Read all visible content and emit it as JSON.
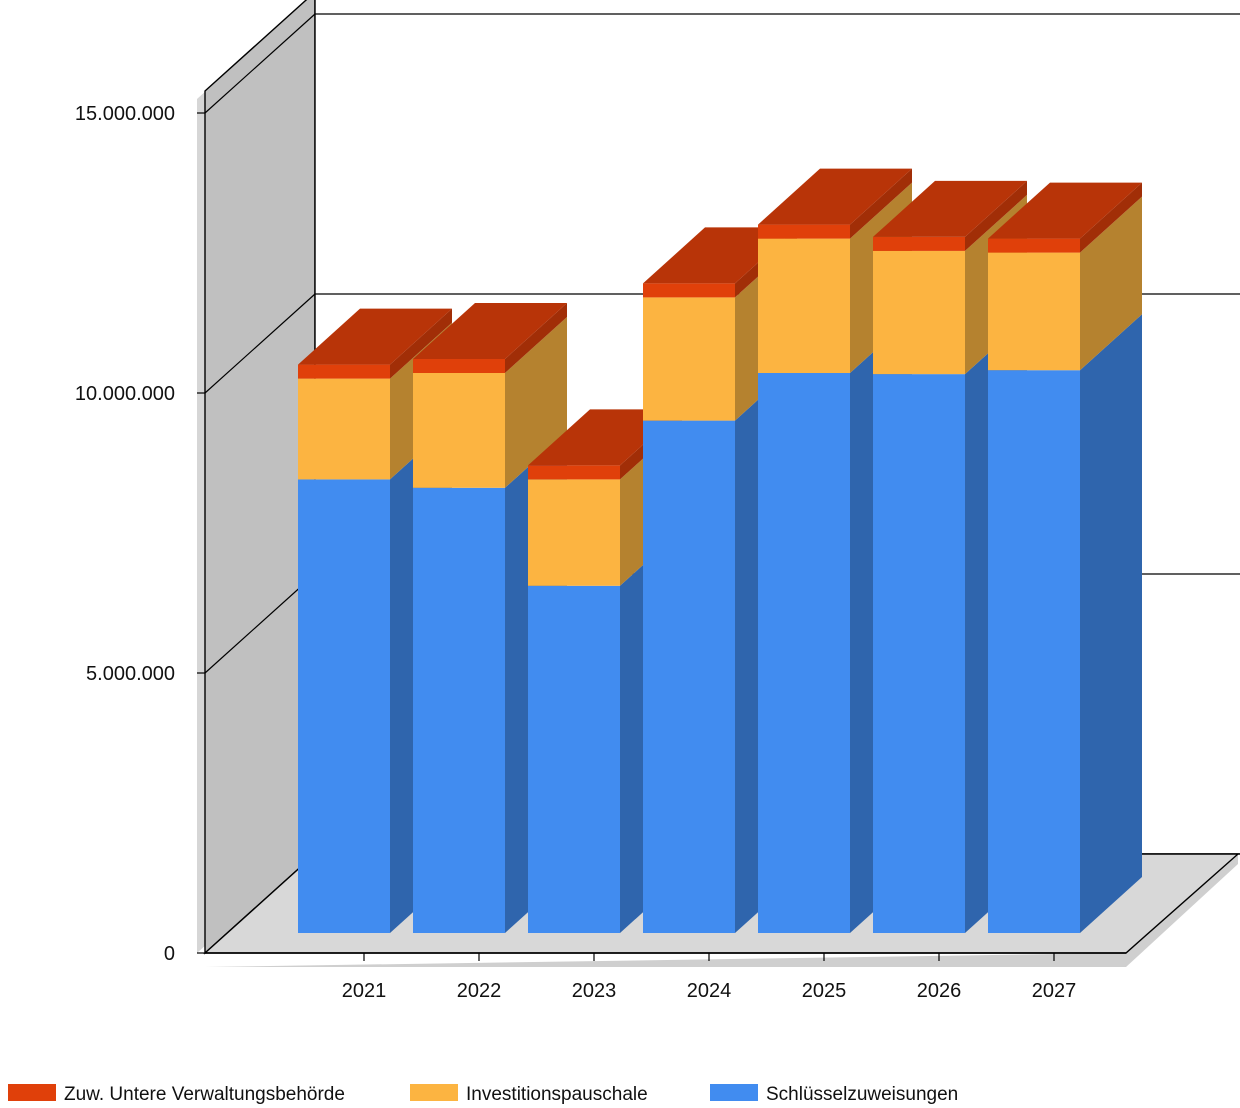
{
  "chart_data": {
    "type": "bar",
    "stacked": true,
    "three_d": true,
    "categories": [
      "2021",
      "2022",
      "2023",
      "2024",
      "2025",
      "2026",
      "2027"
    ],
    "series": [
      {
        "name": "Schlüsselzuweisungen",
        "color": "#418cf0",
        "values": [
          8100000,
          7950000,
          6200000,
          9150000,
          10000000,
          9980000,
          10050000
        ]
      },
      {
        "name": "Investitionspauschale",
        "color": "#fcb441",
        "values": [
          1800000,
          2050000,
          1900000,
          2200000,
          2400000,
          2200000,
          2100000
        ]
      },
      {
        "name": "Zuw. Untere Verwaltungsbehörde",
        "color": "#e0400a",
        "values": [
          250000,
          250000,
          250000,
          250000,
          250000,
          250000,
          250000
        ]
      }
    ],
    "ylim": [
      0,
      15000000
    ],
    "yticks": [
      0,
      5000000,
      10000000,
      15000000
    ],
    "ytick_labels": [
      "0",
      "5.000.000",
      "10.000.000",
      "15.000.000"
    ],
    "grid": true,
    "legend": {
      "position": "bottom-left",
      "entries": [
        "Zuw. Untere Verwaltungsbehörde",
        "Investitionspauschale",
        "Schlüsselzuweisungen"
      ]
    },
    "title": "",
    "xlabel": "",
    "ylabel": ""
  }
}
